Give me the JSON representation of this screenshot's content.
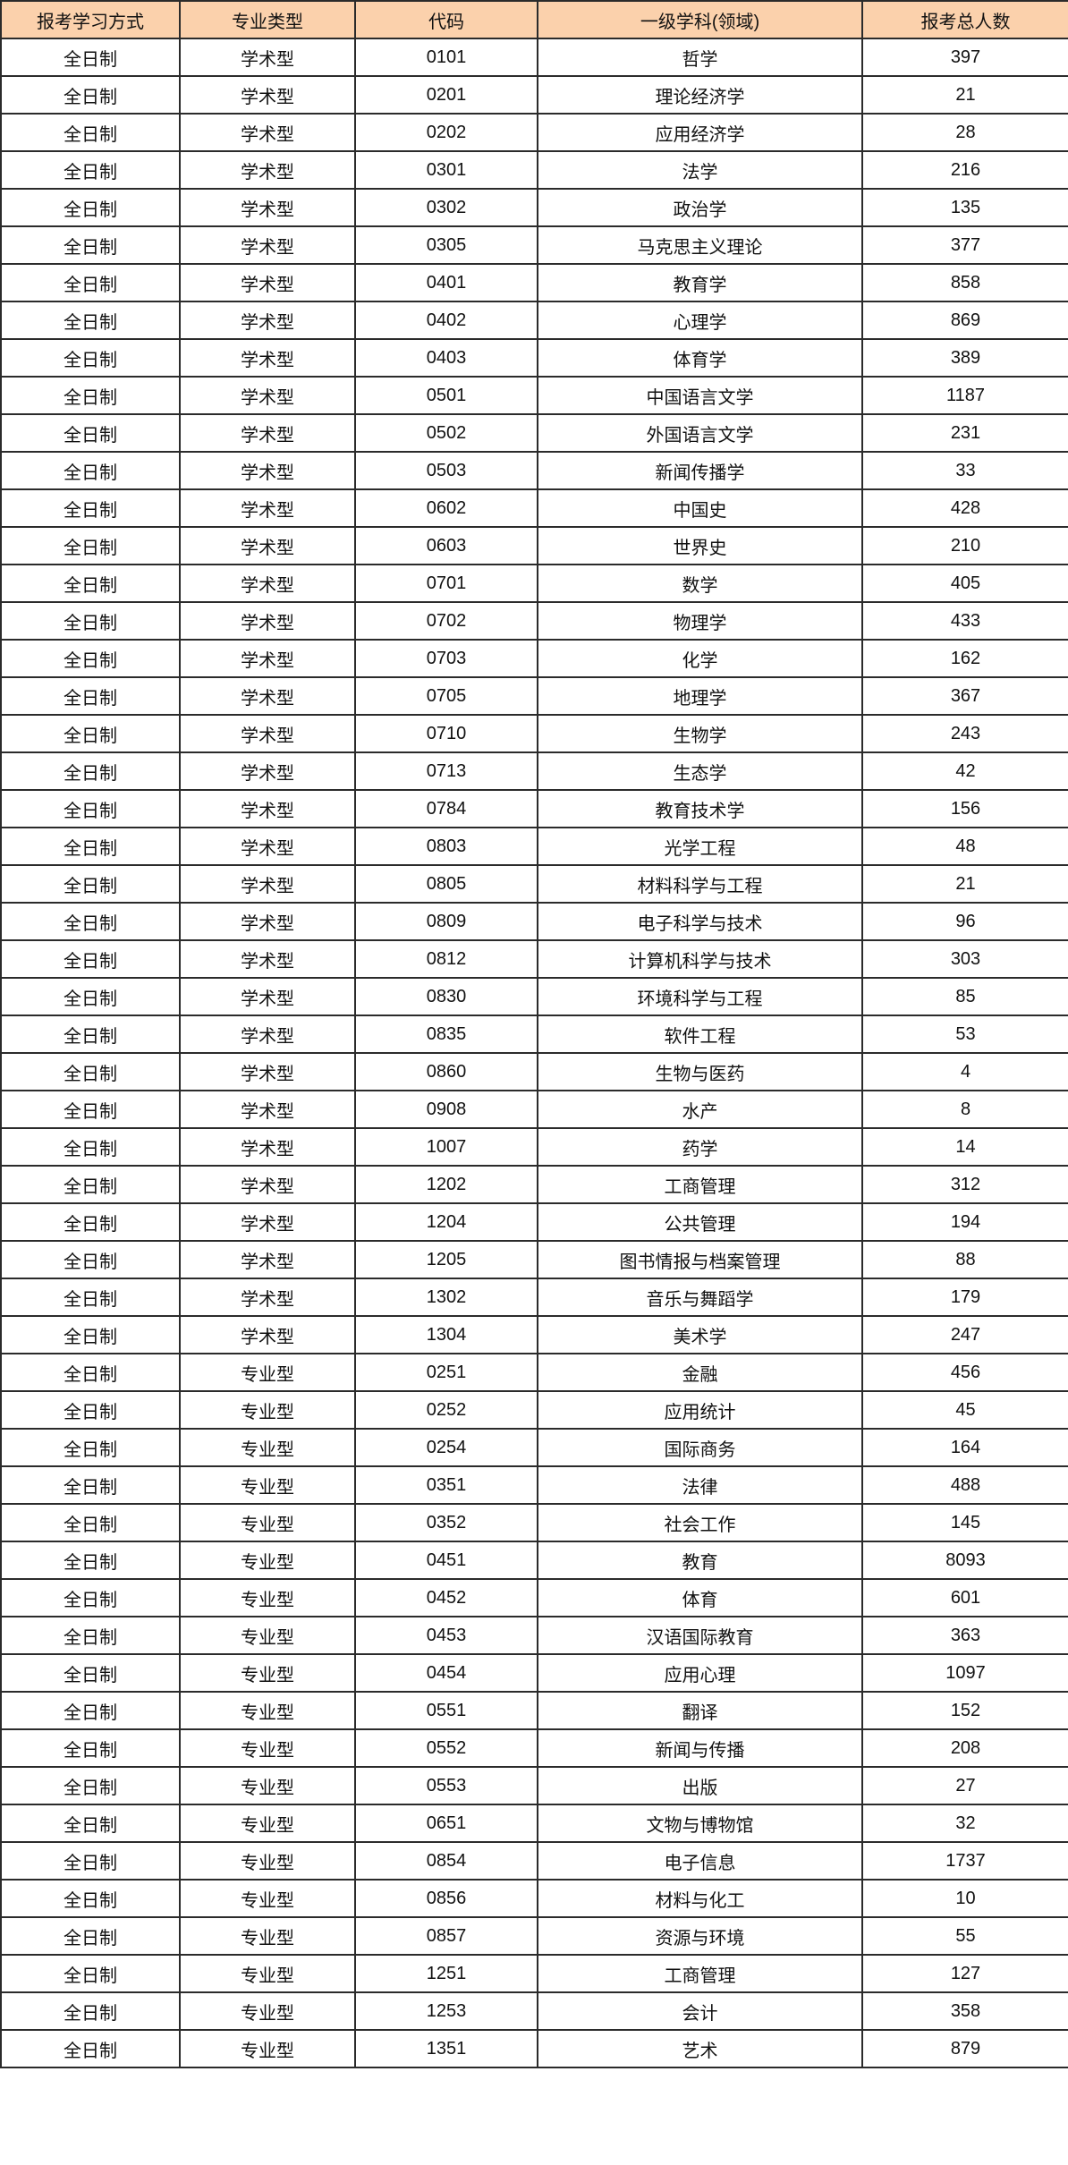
{
  "colors": {
    "header_bg": "#fbd1ac",
    "border": "#2b2b2b",
    "text": "#111111",
    "row_bg": "#ffffff"
  },
  "table": {
    "columns": [
      {
        "label": "报考学习方式"
      },
      {
        "label": "专业类型"
      },
      {
        "label": "代码"
      },
      {
        "label": "一级学科(领域)"
      },
      {
        "label": "报考总人数"
      }
    ],
    "rows": [
      [
        "全日制",
        "学术型",
        "0101",
        "哲学",
        "397"
      ],
      [
        "全日制",
        "学术型",
        "0201",
        "理论经济学",
        "21"
      ],
      [
        "全日制",
        "学术型",
        "0202",
        "应用经济学",
        "28"
      ],
      [
        "全日制",
        "学术型",
        "0301",
        "法学",
        "216"
      ],
      [
        "全日制",
        "学术型",
        "0302",
        "政治学",
        "135"
      ],
      [
        "全日制",
        "学术型",
        "0305",
        "马克思主义理论",
        "377"
      ],
      [
        "全日制",
        "学术型",
        "0401",
        "教育学",
        "858"
      ],
      [
        "全日制",
        "学术型",
        "0402",
        "心理学",
        "869"
      ],
      [
        "全日制",
        "学术型",
        "0403",
        "体育学",
        "389"
      ],
      [
        "全日制",
        "学术型",
        "0501",
        "中国语言文学",
        "1187"
      ],
      [
        "全日制",
        "学术型",
        "0502",
        "外国语言文学",
        "231"
      ],
      [
        "全日制",
        "学术型",
        "0503",
        "新闻传播学",
        "33"
      ],
      [
        "全日制",
        "学术型",
        "0602",
        "中国史",
        "428"
      ],
      [
        "全日制",
        "学术型",
        "0603",
        "世界史",
        "210"
      ],
      [
        "全日制",
        "学术型",
        "0701",
        "数学",
        "405"
      ],
      [
        "全日制",
        "学术型",
        "0702",
        "物理学",
        "433"
      ],
      [
        "全日制",
        "学术型",
        "0703",
        "化学",
        "162"
      ],
      [
        "全日制",
        "学术型",
        "0705",
        "地理学",
        "367"
      ],
      [
        "全日制",
        "学术型",
        "0710",
        "生物学",
        "243"
      ],
      [
        "全日制",
        "学术型",
        "0713",
        "生态学",
        "42"
      ],
      [
        "全日制",
        "学术型",
        "0784",
        "教育技术学",
        "156"
      ],
      [
        "全日制",
        "学术型",
        "0803",
        "光学工程",
        "48"
      ],
      [
        "全日制",
        "学术型",
        "0805",
        "材料科学与工程",
        "21"
      ],
      [
        "全日制",
        "学术型",
        "0809",
        "电子科学与技术",
        "96"
      ],
      [
        "全日制",
        "学术型",
        "0812",
        "计算机科学与技术",
        "303"
      ],
      [
        "全日制",
        "学术型",
        "0830",
        "环境科学与工程",
        "85"
      ],
      [
        "全日制",
        "学术型",
        "0835",
        "软件工程",
        "53"
      ],
      [
        "全日制",
        "学术型",
        "0860",
        "生物与医药",
        "4"
      ],
      [
        "全日制",
        "学术型",
        "0908",
        "水产",
        "8"
      ],
      [
        "全日制",
        "学术型",
        "1007",
        "药学",
        "14"
      ],
      [
        "全日制",
        "学术型",
        "1202",
        "工商管理",
        "312"
      ],
      [
        "全日制",
        "学术型",
        "1204",
        "公共管理",
        "194"
      ],
      [
        "全日制",
        "学术型",
        "1205",
        "图书情报与档案管理",
        "88"
      ],
      [
        "全日制",
        "学术型",
        "1302",
        "音乐与舞蹈学",
        "179"
      ],
      [
        "全日制",
        "学术型",
        "1304",
        "美术学",
        "247"
      ],
      [
        "全日制",
        "专业型",
        "0251",
        "金融",
        "456"
      ],
      [
        "全日制",
        "专业型",
        "0252",
        "应用统计",
        "45"
      ],
      [
        "全日制",
        "专业型",
        "0254",
        "国际商务",
        "164"
      ],
      [
        "全日制",
        "专业型",
        "0351",
        "法律",
        "488"
      ],
      [
        "全日制",
        "专业型",
        "0352",
        "社会工作",
        "145"
      ],
      [
        "全日制",
        "专业型",
        "0451",
        "教育",
        "8093"
      ],
      [
        "全日制",
        "专业型",
        "0452",
        "体育",
        "601"
      ],
      [
        "全日制",
        "专业型",
        "0453",
        "汉语国际教育",
        "363"
      ],
      [
        "全日制",
        "专业型",
        "0454",
        "应用心理",
        "1097"
      ],
      [
        "全日制",
        "专业型",
        "0551",
        "翻译",
        "152"
      ],
      [
        "全日制",
        "专业型",
        "0552",
        "新闻与传播",
        "208"
      ],
      [
        "全日制",
        "专业型",
        "0553",
        "出版",
        "27"
      ],
      [
        "全日制",
        "专业型",
        "0651",
        "文物与博物馆",
        "32"
      ],
      [
        "全日制",
        "专业型",
        "0854",
        "电子信息",
        "1737"
      ],
      [
        "全日制",
        "专业型",
        "0856",
        "材料与化工",
        "10"
      ],
      [
        "全日制",
        "专业型",
        "0857",
        "资源与环境",
        "55"
      ],
      [
        "全日制",
        "专业型",
        "1251",
        "工商管理",
        "127"
      ],
      [
        "全日制",
        "专业型",
        "1253",
        "会计",
        "358"
      ],
      [
        "全日制",
        "专业型",
        "1351",
        "艺术",
        "879"
      ]
    ]
  }
}
